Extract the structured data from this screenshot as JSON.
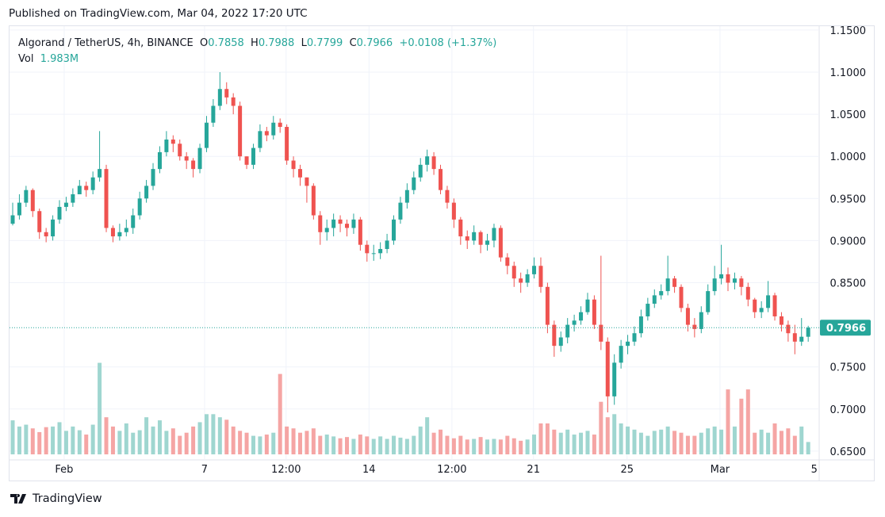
{
  "header": {
    "published": "Published on TradingView.com, Mar 04, 2022 17:20 UTC"
  },
  "legend": {
    "symbol": "Algorand / TetherUS, 4h, BINANCE",
    "o_label": "O",
    "o": "0.7858",
    "h_label": "H",
    "h": "0.7988",
    "l_label": "L",
    "l": "0.7799",
    "c_label": "C",
    "c": "0.7966",
    "change": "+0.0108 (+1.37%)",
    "vol_label": "Vol",
    "vol": "1.983M"
  },
  "footer": {
    "brand": "TradingView"
  },
  "colors": {
    "up": "#26a69a",
    "down": "#ef5350",
    "vol_up": "#9fd6d0",
    "vol_down": "#f5a5a4",
    "grid": "#f0f3fa"
  },
  "chart_data": {
    "type": "candlestick",
    "ylim": [
      0.645,
      1.155
    ],
    "y_ticks": [
      "1.1500",
      "1.1000",
      "1.0500",
      "1.0000",
      "0.9500",
      "0.9000",
      "0.8500",
      "0.7500",
      "0.7000",
      "0.6500"
    ],
    "y_tick_values": [
      1.15,
      1.1,
      1.05,
      1.0,
      0.95,
      0.9,
      0.85,
      0.75,
      0.7,
      0.65
    ],
    "x_ticks": [
      "Feb",
      "7",
      "12:00",
      "14",
      "12:00",
      "21",
      "25",
      "Mar",
      "5"
    ],
    "x_tick_index": [
      7.7,
      28.7,
      40.9,
      53.3,
      65.7,
      77.9,
      91.9,
      105.8,
      119.9
    ],
    "last_price": "0.7966",
    "first_open": 0.92,
    "close": [
      0.93,
      0.945,
      0.96,
      0.935,
      0.91,
      0.905,
      0.925,
      0.94,
      0.945,
      0.955,
      0.965,
      0.96,
      0.975,
      0.985,
      0.915,
      0.905,
      0.91,
      0.915,
      0.93,
      0.95,
      0.965,
      0.985,
      1.005,
      1.02,
      1.015,
      1.0,
      0.995,
      0.985,
      1.01,
      1.04,
      1.06,
      1.08,
      1.07,
      1.06,
      1.0,
      0.99,
      1.01,
      1.03,
      1.025,
      1.04,
      1.035,
      0.995,
      0.985,
      0.975,
      0.965,
      0.93,
      0.91,
      0.915,
      0.925,
      0.92,
      0.915,
      0.925,
      0.895,
      0.885,
      0.885,
      0.89,
      0.9,
      0.925,
      0.945,
      0.96,
      0.975,
      0.99,
      1.0,
      0.985,
      0.96,
      0.945,
      0.925,
      0.905,
      0.9,
      0.91,
      0.895,
      0.9,
      0.915,
      0.88,
      0.87,
      0.855,
      0.85,
      0.86,
      0.87,
      0.845,
      0.8,
      0.775,
      0.785,
      0.8,
      0.805,
      0.815,
      0.83,
      0.8,
      0.78,
      0.715,
      0.755,
      0.775,
      0.78,
      0.79,
      0.81,
      0.825,
      0.835,
      0.84,
      0.855,
      0.845,
      0.82,
      0.8,
      0.795,
      0.815,
      0.84,
      0.855,
      0.86,
      0.85,
      0.855,
      0.845,
      0.83,
      0.815,
      0.82,
      0.835,
      0.81,
      0.8,
      0.79,
      0.78,
      0.7858,
      0.7966
    ],
    "high": [
      0.945,
      0.955,
      0.965,
      0.962,
      0.938,
      0.915,
      0.93,
      0.948,
      0.952,
      0.962,
      0.972,
      0.97,
      0.982,
      1.03,
      0.99,
      0.918,
      0.92,
      0.925,
      0.938,
      0.958,
      0.972,
      0.992,
      1.012,
      1.03,
      1.025,
      1.02,
      1.005,
      0.998,
      1.015,
      1.048,
      1.068,
      1.1,
      1.088,
      1.075,
      1.065,
      1.0,
      1.015,
      1.038,
      1.035,
      1.048,
      1.045,
      1.038,
      1.0,
      0.99,
      0.975,
      0.968,
      0.935,
      0.925,
      0.932,
      0.93,
      0.925,
      0.932,
      0.928,
      0.9,
      0.895,
      0.898,
      0.908,
      0.93,
      0.952,
      0.968,
      0.982,
      0.998,
      1.008,
      1.005,
      0.99,
      0.965,
      0.95,
      0.928,
      0.912,
      0.918,
      0.912,
      0.908,
      0.92,
      0.918,
      0.885,
      0.875,
      0.862,
      0.866,
      0.88,
      0.88,
      0.85,
      0.805,
      0.792,
      0.808,
      0.812,
      0.822,
      0.838,
      0.835,
      0.882,
      0.785,
      0.765,
      0.782,
      0.788,
      0.798,
      0.818,
      0.832,
      0.842,
      0.848,
      0.882,
      0.858,
      0.848,
      0.825,
      0.808,
      0.822,
      0.848,
      0.87,
      0.895,
      0.868,
      0.862,
      0.858,
      0.85,
      0.832,
      0.828,
      0.852,
      0.838,
      0.815,
      0.805,
      0.8,
      0.808,
      0.7988
    ],
    "low": [
      0.918,
      0.925,
      0.94,
      0.928,
      0.902,
      0.898,
      0.9,
      0.92,
      0.935,
      0.94,
      0.955,
      0.952,
      0.955,
      0.97,
      0.91,
      0.898,
      0.9,
      0.905,
      0.908,
      0.925,
      0.945,
      0.96,
      0.98,
      1.0,
      1.005,
      0.995,
      0.985,
      0.975,
      0.98,
      1.005,
      1.035,
      1.055,
      1.062,
      1.05,
      0.995,
      0.985,
      0.985,
      1.005,
      1.018,
      1.02,
      1.028,
      0.99,
      0.975,
      0.965,
      0.945,
      0.925,
      0.895,
      0.9,
      0.905,
      0.91,
      0.905,
      0.908,
      0.888,
      0.875,
      0.876,
      0.878,
      0.885,
      0.895,
      0.92,
      0.938,
      0.955,
      0.97,
      0.982,
      0.978,
      0.955,
      0.938,
      0.915,
      0.895,
      0.89,
      0.895,
      0.885,
      0.888,
      0.892,
      0.875,
      0.86,
      0.845,
      0.838,
      0.845,
      0.855,
      0.838,
      0.79,
      0.762,
      0.768,
      0.778,
      0.792,
      0.8,
      0.812,
      0.795,
      0.77,
      0.696,
      0.705,
      0.748,
      0.765,
      0.775,
      0.785,
      0.805,
      0.82,
      0.83,
      0.835,
      0.838,
      0.815,
      0.792,
      0.785,
      0.79,
      0.812,
      0.835,
      0.848,
      0.84,
      0.842,
      0.835,
      0.822,
      0.808,
      0.808,
      0.815,
      0.805,
      0.792,
      0.78,
      0.765,
      0.775,
      0.7799
    ],
    "volume": [
      5.5,
      4.5,
      4.8,
      4.2,
      3.6,
      4.4,
      4.5,
      5.2,
      3.8,
      4.5,
      3.9,
      3.2,
      4.8,
      14.8,
      6.0,
      4.5,
      3.8,
      5.0,
      3.5,
      3.9,
      6.0,
      4.5,
      5.5,
      3.8,
      4.2,
      3.0,
      3.5,
      4.5,
      5.2,
      6.5,
      6.5,
      6.0,
      5.6,
      4.5,
      3.8,
      3.5,
      3.0,
      2.9,
      3.2,
      3.5,
      13.0,
      4.5,
      4.2,
      3.5,
      3.8,
      4.2,
      3.0,
      3.2,
      2.9,
      2.6,
      2.8,
      2.5,
      3.2,
      2.9,
      2.5,
      2.9,
      2.5,
      3.0,
      2.7,
      2.5,
      3.0,
      4.5,
      6.0,
      3.5,
      4.0,
      3.0,
      2.6,
      3.0,
      2.4,
      2.5,
      2.8,
      2.4,
      2.5,
      2.4,
      3.0,
      2.6,
      2.2,
      2.4,
      3.2,
      5.0,
      5.0,
      4.0,
      3.5,
      4.0,
      3.2,
      3.5,
      3.8,
      3.2,
      8.5,
      6.0,
      6.5,
      5.0,
      4.5,
      4.0,
      3.5,
      3.0,
      3.8,
      4.0,
      4.5,
      3.8,
      3.5,
      3.0,
      3.0,
      3.5,
      4.2,
      4.5,
      4.0,
      10.5,
      4.5,
      9.0,
      10.5,
      3.5,
      4.0,
      3.5,
      5.0,
      3.8,
      4.2,
      3.0,
      4.5,
      2.0
    ],
    "volume_unit": "M"
  }
}
